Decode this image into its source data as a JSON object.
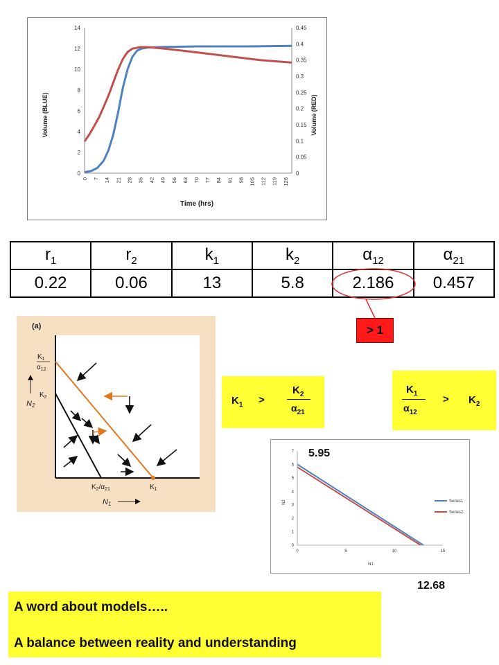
{
  "chart_data": [
    {
      "type": "line",
      "xlabel": "Time (hrs)",
      "ylabel": "Volume (BLUE)",
      "y2label": "Volume (RED)",
      "ylim": [
        0,
        14
      ],
      "yticks": [
        "0",
        "2",
        "4",
        "6",
        "8",
        "10",
        "12",
        "14"
      ],
      "y2lim": [
        0,
        0.45
      ],
      "y2ticks": [
        "0",
        "0.05",
        "0.1",
        "0.15",
        "0.2",
        "0.25",
        "0.3",
        "0.35",
        "0.4",
        "0.45"
      ],
      "xlim": [
        0,
        130
      ],
      "xticks": [
        "0",
        "7",
        "14",
        "21",
        "28",
        "35",
        "42",
        "49",
        "56",
        "63",
        "70",
        "77",
        "84",
        "91",
        "98",
        "105",
        "112",
        "119",
        "126"
      ],
      "series": [
        {
          "color": "#4f81bd",
          "axis": "left",
          "points": [
            [
              0,
              0.1
            ],
            [
              4,
              0.2
            ],
            [
              8,
              0.5
            ],
            [
              12,
              1.2
            ],
            [
              15,
              2.2
            ],
            [
              18,
              3.7
            ],
            [
              21,
              5.8
            ],
            [
              24,
              8.2
            ],
            [
              27,
              10.0
            ],
            [
              30,
              11.2
            ],
            [
              33,
              11.8
            ],
            [
              36,
              12.0
            ],
            [
              40,
              12.1
            ],
            [
              50,
              12.15
            ],
            [
              70,
              12.2
            ],
            [
              100,
              12.2
            ],
            [
              130,
              12.25
            ]
          ]
        },
        {
          "color": "#c0504d",
          "axis": "right",
          "points": [
            [
              0,
              0.098
            ],
            [
              3,
              0.12
            ],
            [
              6,
              0.145
            ],
            [
              9,
              0.172
            ],
            [
              12,
              0.205
            ],
            [
              15,
              0.24
            ],
            [
              18,
              0.28
            ],
            [
              21,
              0.32
            ],
            [
              24,
              0.353
            ],
            [
              27,
              0.375
            ],
            [
              30,
              0.385
            ],
            [
              35,
              0.39
            ],
            [
              40,
              0.39
            ],
            [
              50,
              0.385
            ],
            [
              60,
              0.38
            ],
            [
              70,
              0.374
            ],
            [
              80,
              0.368
            ],
            [
              90,
              0.362
            ],
            [
              100,
              0.356
            ],
            [
              110,
              0.35
            ],
            [
              120,
              0.346
            ],
            [
              130,
              0.342
            ]
          ]
        }
      ]
    },
    {
      "type": "line",
      "xlabel": "N1",
      "ylabel": "N2",
      "xlim": [
        0,
        15
      ],
      "ylim": [
        0,
        7
      ],
      "xticks": [
        "0",
        "5",
        "10",
        "15"
      ],
      "yticks": [
        "0",
        "1",
        "2",
        "3",
        "4",
        "5",
        "6",
        "7"
      ],
      "series": [
        {
          "name": "Series1",
          "color": "#4f81bd",
          "points": [
            [
              0,
              6.0
            ],
            [
              13,
              0
            ]
          ]
        },
        {
          "name": "Series2",
          "color": "#c0504d",
          "points": [
            [
              0,
              5.8
            ],
            [
              12.7,
              0
            ]
          ]
        }
      ],
      "legend": "right"
    }
  ],
  "table": {
    "headers": [
      {
        "base": "r",
        "sub": "1"
      },
      {
        "base": "r",
        "sub": "2"
      },
      {
        "base": "k",
        "sub": "1"
      },
      {
        "base": "k",
        "sub": "2"
      },
      {
        "base": "α",
        "sub": "12"
      },
      {
        "base": "α",
        "sub": "21"
      }
    ],
    "values": [
      "0.22",
      "0.06",
      "13",
      "5.8",
      "2.186",
      "0.457"
    ]
  },
  "callout_label": "> 1",
  "diagram": {
    "panel_label": "(a)",
    "y_top_label": {
      "base": "K",
      "sub": "1",
      "den_base": "α",
      "den_sub": "12"
    },
    "y_mid_label": {
      "base": "K",
      "sub": "2"
    },
    "x_mid_label": {
      "base": "K",
      "sub": "2",
      "rest": "/α",
      "rest_sub": "21"
    },
    "x_end_label": {
      "base": "K",
      "sub": "1"
    },
    "y_axis_label": {
      "base": "N",
      "sub": "2"
    },
    "x_axis_label": {
      "base": "N",
      "sub": "1"
    }
  },
  "inequality_left": {
    "lhs_base": "K",
    "lhs_sub": "1",
    "op": ">",
    "num_base": "K",
    "num_sub": "2",
    "den_base": "α",
    "den_sub": "21"
  },
  "inequality_right": {
    "num_base": "K",
    "num_sub": "1",
    "den_base": "α",
    "den_sub": "12",
    "op": ">",
    "rhs_base": "K",
    "rhs_sub": "2"
  },
  "annotation_top": "5.95",
  "annotation_bottom": "12.68",
  "text_box": {
    "line1": "A word about models…..",
    "line2": "A balance between reality and understanding"
  }
}
